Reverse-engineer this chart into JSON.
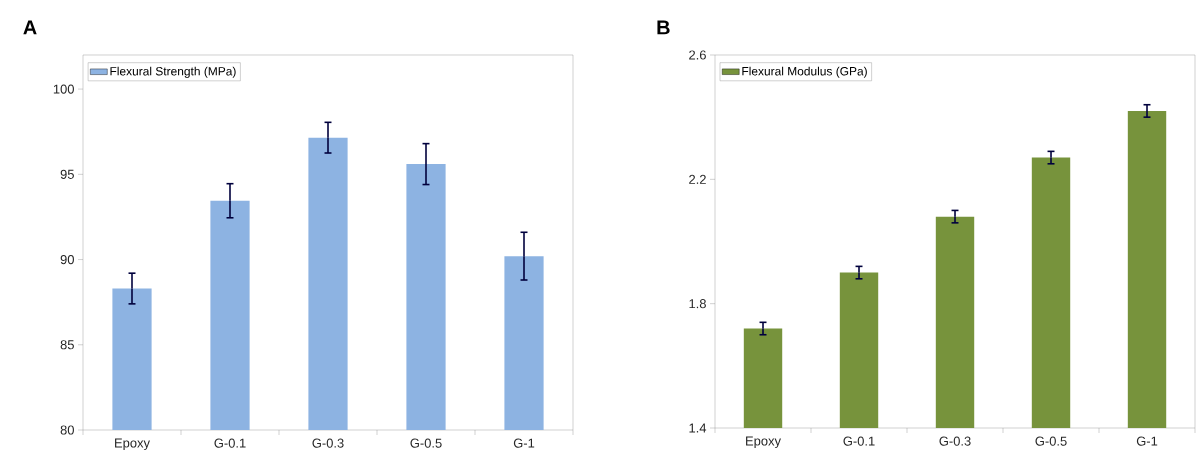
{
  "chart_data": [
    {
      "type": "bar",
      "title": "A",
      "categories": [
        "Epoxy",
        "G-0.1",
        "G-0.3",
        "G-0.5",
        "G-1"
      ],
      "series": [
        {
          "name": "Flexural Strength (MPa)",
          "color": "#8db3e2",
          "values": [
            88.3,
            93.45,
            97.15,
            95.6,
            90.2
          ],
          "errors": [
            0.9,
            1.0,
            0.9,
            1.2,
            1.4
          ]
        }
      ],
      "ylim": [
        80,
        102
      ],
      "yticks": [
        80,
        85,
        90,
        95,
        100
      ],
      "legend": "top left"
    },
    {
      "type": "bar",
      "title": "B",
      "categories": [
        "Epoxy",
        "G-0.1",
        "G-0.3",
        "G-0.5",
        "G-1"
      ],
      "series": [
        {
          "name": "Flexural Modulus (GPa)",
          "color": "#77933c",
          "values": [
            1.72,
            1.9,
            2.08,
            2.27,
            2.42
          ],
          "errors": [
            0.02,
            0.02,
            0.02,
            0.02,
            0.02
          ]
        }
      ],
      "ylim": [
        1.4,
        2.6
      ],
      "yticks": [
        1.4,
        1.8,
        2.2,
        2.6
      ],
      "legend": "top left"
    }
  ]
}
